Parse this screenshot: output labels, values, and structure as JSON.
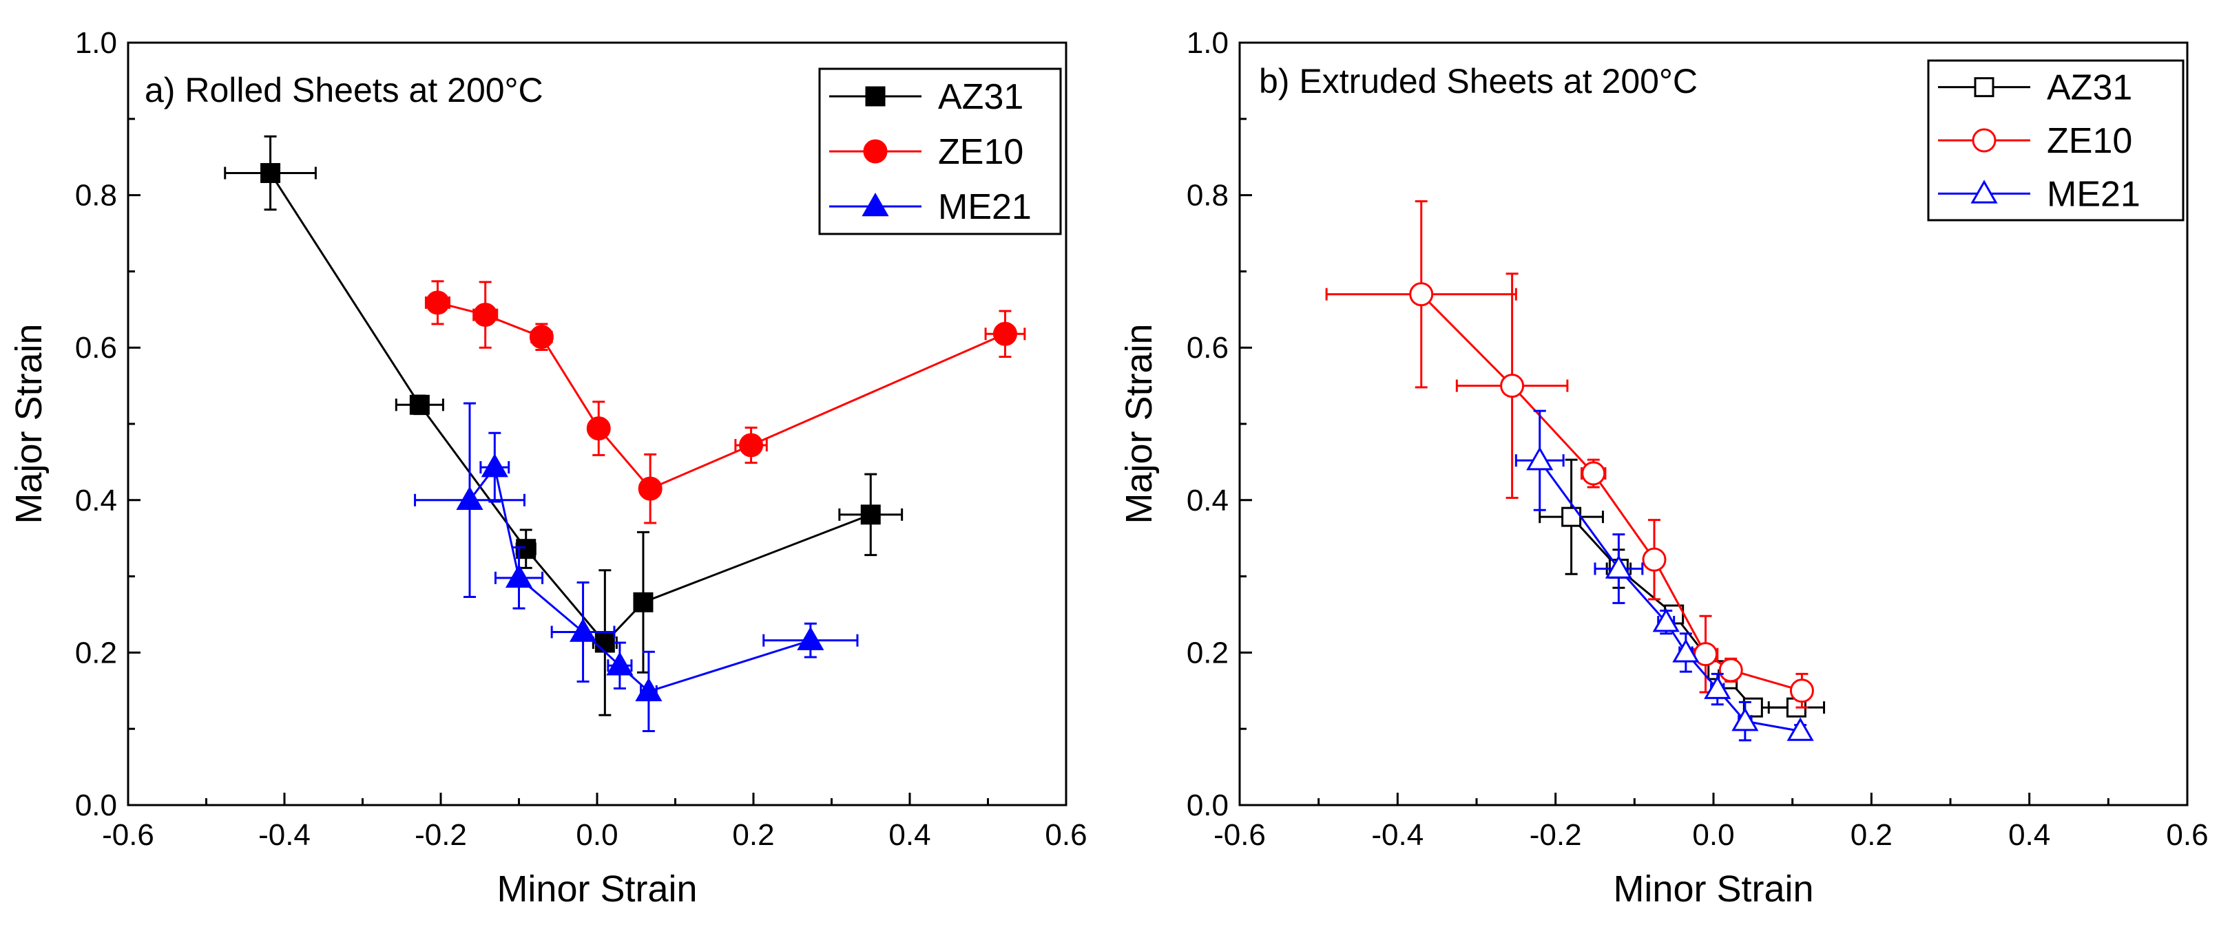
{
  "chart_data": [
    {
      "type": "scatter",
      "title": "a) Rolled Sheets at 200°C",
      "xlabel": "Minor Strain",
      "ylabel": "Major Strain",
      "xlim": [
        -0.6,
        0.6
      ],
      "ylim": [
        0.0,
        1.0
      ],
      "x_ticks": [
        "-0.6",
        "-0.4",
        "-0.2",
        "0.0",
        "0.2",
        "0.4",
        "0.6"
      ],
      "y_ticks": [
        "0.0",
        "0.2",
        "0.4",
        "0.6",
        "0.8",
        "1.0"
      ],
      "legend_position": "top-right",
      "series": [
        {
          "name": "AZ31",
          "color": "#000000",
          "marker": "square",
          "filled": true,
          "points": [
            {
              "x": -0.418,
              "y": 0.829,
              "xerr": 0.058,
              "yerr": 0.048
            },
            {
              "x": -0.227,
              "y": 0.525,
              "xerr": 0.03,
              "yerr": 0.012
            },
            {
              "x": -0.091,
              "y": 0.336,
              "xerr": 0.012,
              "yerr": 0.025
            },
            {
              "x": 0.01,
              "y": 0.213,
              "xerr": 0.015,
              "yerr": 0.095
            },
            {
              "x": 0.059,
              "y": 0.266,
              "xerr": 0.01,
              "yerr": 0.092
            },
            {
              "x": 0.35,
              "y": 0.381,
              "xerr": 0.04,
              "yerr": 0.053
            }
          ]
        },
        {
          "name": "ZE10",
          "color": "#ff0000",
          "marker": "circle",
          "filled": true,
          "points": [
            {
              "x": -0.204,
              "y": 0.659,
              "xerr": 0.015,
              "yerr": 0.028
            },
            {
              "x": -0.143,
              "y": 0.643,
              "xerr": 0.015,
              "yerr": 0.043
            },
            {
              "x": -0.071,
              "y": 0.614,
              "xerr": 0.013,
              "yerr": 0.017
            },
            {
              "x": 0.002,
              "y": 0.494,
              "xerr": 0.008,
              "yerr": 0.035
            },
            {
              "x": 0.068,
              "y": 0.415,
              "xerr": 0.008,
              "yerr": 0.045
            },
            {
              "x": 0.197,
              "y": 0.472,
              "xerr": 0.02,
              "yerr": 0.023
            },
            {
              "x": 0.522,
              "y": 0.618,
              "xerr": 0.025,
              "yerr": 0.03
            }
          ]
        },
        {
          "name": "ME21",
          "color": "#0000ff",
          "marker": "triangle",
          "filled": true,
          "points": [
            {
              "x": -0.163,
              "y": 0.4,
              "xerr": 0.07,
              "yerr": 0.127
            },
            {
              "x": -0.131,
              "y": 0.443,
              "xerr": 0.018,
              "yerr": 0.045
            },
            {
              "x": -0.1,
              "y": 0.298,
              "xerr": 0.03,
              "yerr": 0.04
            },
            {
              "x": -0.018,
              "y": 0.227,
              "xerr": 0.04,
              "yerr": 0.065
            },
            {
              "x": 0.029,
              "y": 0.183,
              "xerr": 0.015,
              "yerr": 0.03
            },
            {
              "x": 0.066,
              "y": 0.149,
              "xerr": 0.01,
              "yerr": 0.052
            },
            {
              "x": 0.273,
              "y": 0.216,
              "xerr": 0.06,
              "yerr": 0.022
            }
          ]
        }
      ]
    },
    {
      "type": "scatter",
      "title": "b) Extruded Sheets at 200°C",
      "xlabel": "Minor Strain",
      "ylabel": "Major Strain",
      "xlim": [
        -0.6,
        0.6
      ],
      "ylim": [
        0.0,
        1.0
      ],
      "x_ticks": [
        "-0.6",
        "-0.4",
        "-0.2",
        "0.0",
        "0.2",
        "0.4",
        "0.6"
      ],
      "y_ticks": [
        "0.0",
        "0.2",
        "0.4",
        "0.6",
        "0.8",
        "1.0"
      ],
      "legend_position": "top-right",
      "series": [
        {
          "name": "AZ31",
          "color": "#000000",
          "marker": "square",
          "filled": false,
          "points": [
            {
              "x": -0.18,
              "y": 0.378,
              "xerr": 0.04,
              "yerr": 0.075
            },
            {
              "x": -0.12,
              "y": 0.31,
              "xerr": 0.015,
              "yerr": 0.025
            },
            {
              "x": -0.05,
              "y": 0.25,
              "xerr": 0.01,
              "yerr": 0.01
            },
            {
              "x": 0.005,
              "y": 0.177,
              "xerr": 0.008,
              "yerr": 0.01
            },
            {
              "x": 0.018,
              "y": 0.165,
              "xerr": 0.008,
              "yerr": 0.01
            },
            {
              "x": 0.05,
              "y": 0.128,
              "xerr": 0.01,
              "yerr": 0.008
            },
            {
              "x": 0.105,
              "y": 0.128,
              "xerr": 0.035,
              "yerr": 0.01
            }
          ]
        },
        {
          "name": "ZE10",
          "color": "#ff0000",
          "marker": "circle",
          "filled": false,
          "points": [
            {
              "x": -0.37,
              "y": 0.67,
              "xerr": 0.12,
              "yerr": 0.122
            },
            {
              "x": -0.255,
              "y": 0.55,
              "xerr": 0.07,
              "yerr": 0.147
            },
            {
              "x": -0.152,
              "y": 0.435,
              "xerr": 0.015,
              "yerr": 0.018
            },
            {
              "x": -0.075,
              "y": 0.322,
              "xerr": 0.01,
              "yerr": 0.052
            },
            {
              "x": -0.01,
              "y": 0.198,
              "xerr": 0.015,
              "yerr": 0.05
            },
            {
              "x": 0.022,
              "y": 0.177,
              "xerr": 0.012,
              "yerr": 0.015
            },
            {
              "x": 0.112,
              "y": 0.15,
              "xerr": 0.012,
              "yerr": 0.022
            }
          ]
        },
        {
          "name": "ME21",
          "color": "#0000ff",
          "marker": "triangle",
          "filled": false,
          "points": [
            {
              "x": -0.22,
              "y": 0.452,
              "xerr": 0.03,
              "yerr": 0.065
            },
            {
              "x": -0.12,
              "y": 0.31,
              "xerr": 0.03,
              "yerr": 0.045
            },
            {
              "x": -0.06,
              "y": 0.24,
              "xerr": 0.01,
              "yerr": 0.015
            },
            {
              "x": -0.035,
              "y": 0.2,
              "xerr": 0.008,
              "yerr": 0.025
            },
            {
              "x": 0.005,
              "y": 0.152,
              "xerr": 0.008,
              "yerr": 0.02
            },
            {
              "x": 0.04,
              "y": 0.11,
              "xerr": 0.008,
              "yerr": 0.025
            },
            {
              "x": 0.11,
              "y": 0.097,
              "xerr": 0.005,
              "yerr": 0.008
            }
          ]
        }
      ]
    }
  ]
}
